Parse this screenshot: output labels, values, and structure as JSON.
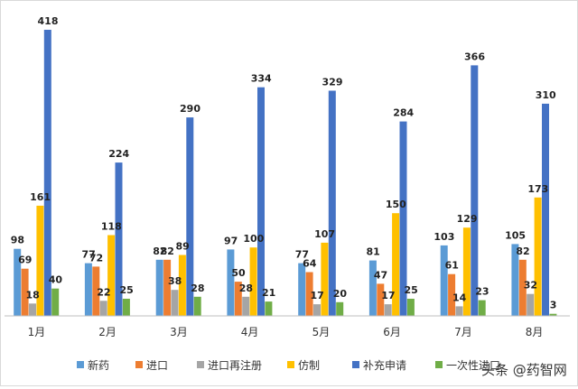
{
  "chart_data": {
    "type": "bar",
    "categories": [
      "1月",
      "2月",
      "3月",
      "4月",
      "5月",
      "6月",
      "7月",
      "8月"
    ],
    "series": [
      {
        "name": "新药",
        "color": "#5b9bd5",
        "values": [
          98,
          77,
          82,
          97,
          77,
          81,
          103,
          105
        ]
      },
      {
        "name": "进口",
        "color": "#ed7d31",
        "values": [
          69,
          72,
          82,
          50,
          64,
          47,
          61,
          82
        ]
      },
      {
        "name": "进口再注册",
        "color": "#a5a5a5",
        "values": [
          18,
          22,
          38,
          28,
          17,
          17,
          14,
          32
        ]
      },
      {
        "name": "仿制",
        "color": "#ffc000",
        "values": [
          161,
          118,
          89,
          100,
          107,
          150,
          129,
          173
        ]
      },
      {
        "name": "补充申请",
        "color": "#4472c4",
        "values": [
          418,
          224,
          290,
          334,
          329,
          284,
          366,
          310
        ]
      },
      {
        "name": "一次性进口",
        "color": "#70ad47",
        "values": [
          40,
          25,
          28,
          21,
          20,
          25,
          23,
          3
        ]
      }
    ],
    "ylim": [
      0,
      440
    ],
    "grid": false,
    "legend_position": "bottom"
  },
  "watermark": "头条 @药智网"
}
